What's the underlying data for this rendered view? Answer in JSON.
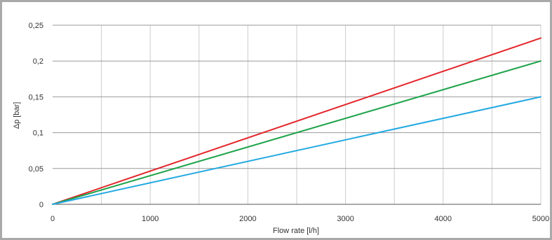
{
  "chart_data": {
    "type": "line",
    "xlabel": "Flow rate [l/h]",
    "ylabel": "Δp [bar]",
    "xlim": [
      0,
      5000
    ],
    "ylim": [
      0,
      0.25
    ],
    "grid": true,
    "x_ticks": [
      {
        "value": 0,
        "label": "0"
      },
      {
        "value": 1000,
        "label": "1000"
      },
      {
        "value": 2000,
        "label": "2000"
      },
      {
        "value": 3000,
        "label": "3000"
      },
      {
        "value": 4000,
        "label": "4000"
      },
      {
        "value": 5000,
        "label": "5000"
      }
    ],
    "y_ticks": [
      {
        "value": 0,
        "label": "0"
      },
      {
        "value": 0.05,
        "label": "0,05"
      },
      {
        "value": 0.1,
        "label": "0,1"
      },
      {
        "value": 0.15,
        "label": "0,15"
      },
      {
        "value": 0.2,
        "label": "0,2"
      },
      {
        "value": 0.25,
        "label": "0,25"
      }
    ],
    "series": [
      {
        "color": "#e3262b",
        "x": [
          0,
          5000
        ],
        "y": [
          0,
          0.232
        ]
      },
      {
        "color": "#1ea34a",
        "x": [
          0,
          5000
        ],
        "y": [
          0,
          0.2
        ]
      },
      {
        "color": "#22a9e1",
        "x": [
          0,
          5000
        ],
        "y": [
          0,
          0.15
        ]
      }
    ]
  }
}
